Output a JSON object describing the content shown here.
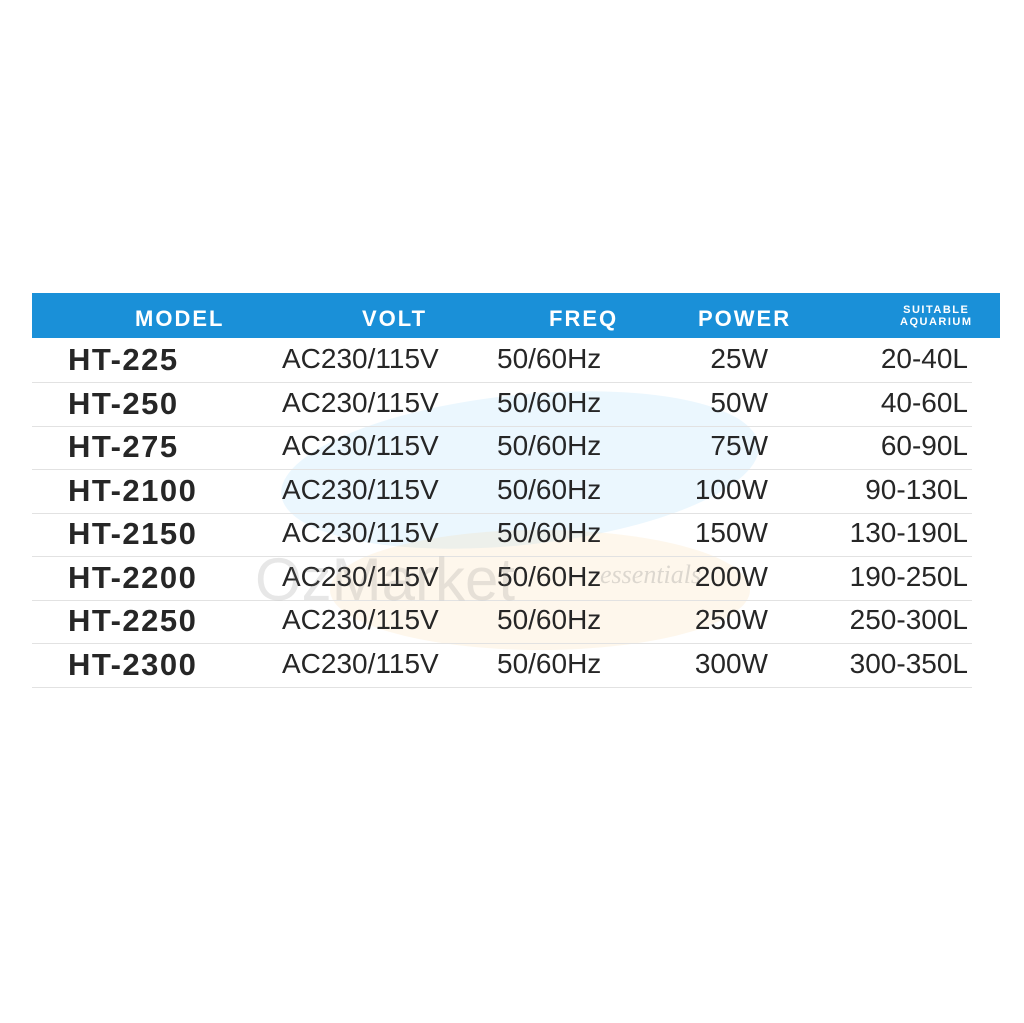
{
  "header": {
    "model": "MODEL",
    "volt": "VOLT",
    "freq": "FREQ",
    "power": "POWER",
    "aquarium_line1": "SUITABLE",
    "aquarium_line2": "AQUARIUM"
  },
  "rows": [
    {
      "model": "HT-225",
      "volt": "AC230/115V",
      "freq": "50/60Hz",
      "power": "25W",
      "aquarium": "20-40L"
    },
    {
      "model": "HT-250",
      "volt": "AC230/115V",
      "freq": "50/60Hz",
      "power": "50W",
      "aquarium": "40-60L"
    },
    {
      "model": "HT-275",
      "volt": "AC230/115V",
      "freq": "50/60Hz",
      "power": "75W",
      "aquarium": "60-90L"
    },
    {
      "model": "HT-2100",
      "volt": "AC230/115V",
      "freq": "50/60Hz",
      "power": "100W",
      "aquarium": "90-130L"
    },
    {
      "model": "HT-2150",
      "volt": "AC230/115V",
      "freq": "50/60Hz",
      "power": "150W",
      "aquarium": "130-190L"
    },
    {
      "model": "HT-2200",
      "volt": "AC230/115V",
      "freq": "50/60Hz",
      "power": "200W",
      "aquarium": "190-250L"
    },
    {
      "model": "HT-2250",
      "volt": "AC230/115V",
      "freq": "50/60Hz",
      "power": "250W",
      "aquarium": "250-300L"
    },
    {
      "model": "HT-2300",
      "volt": "AC230/115V",
      "freq": "50/60Hz",
      "power": "300W",
      "aquarium": "300-350L"
    }
  ],
  "watermark": {
    "brand": "OzMarket",
    "tagline": "essentials"
  },
  "colors": {
    "header_bg": "#1a90d8",
    "header_text": "#ffffff",
    "text": "#262626"
  }
}
